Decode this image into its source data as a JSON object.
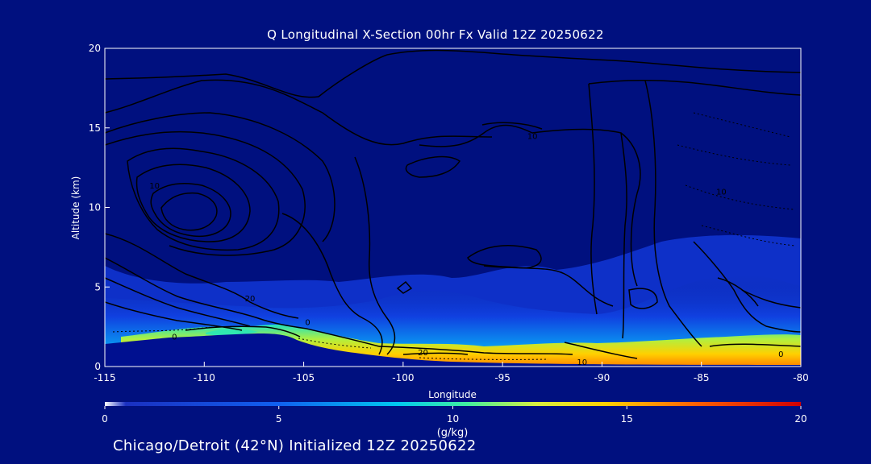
{
  "title": "Q Longitudinal X-Section 00hr  Fx Valid 12Z 20250622",
  "footer": "Chicago/Detroit (42°N) Initialized 12Z 20250622",
  "colors": {
    "background": "#00107f",
    "text": "#ffffff",
    "contour": "#000000"
  },
  "chart_data": {
    "type": "heatmap",
    "title": "Q Longitudinal X-Section 00hr  Fx Valid 12Z 20250622",
    "xlabel": "Longitude",
    "ylabel": "Altitude (km)",
    "xlim": [
      -115,
      -80
    ],
    "ylim": [
      0,
      20
    ],
    "xticks": [
      -115,
      -110,
      -105,
      -100,
      -95,
      -90,
      -85,
      -80
    ],
    "xtick_labels": [
      "-115",
      "-110",
      "-105",
      "-100",
      "-95",
      "-90",
      "-85",
      "-80"
    ],
    "yticks": [
      0,
      5,
      10,
      15,
      20
    ],
    "ytick_labels": [
      "0",
      "5",
      "10",
      "15",
      "20"
    ],
    "colorbar": {
      "label": "(g/kg)",
      "min": 0,
      "max": 20,
      "ticks": [
        0,
        5,
        10,
        15,
        20
      ],
      "tick_labels": [
        "0",
        "5",
        "10",
        "15",
        "20"
      ]
    },
    "terrain_km": [
      {
        "lon": -115,
        "alt": 1.4
      },
      {
        "lon": -112,
        "alt": 1.5
      },
      {
        "lon": -110,
        "alt": 1.9
      },
      {
        "lon": -108,
        "alt": 2.0
      },
      {
        "lon": -106,
        "alt": 1.9
      },
      {
        "lon": -105,
        "alt": 1.8
      },
      {
        "lon": -103,
        "alt": 1.2
      },
      {
        "lon": -101,
        "alt": 0.8
      },
      {
        "lon": -99,
        "alt": 0.5
      },
      {
        "lon": -95,
        "alt": 0.25
      },
      {
        "lon": -80,
        "alt": 0.15
      }
    ],
    "contour_labels": [
      {
        "text": "10",
        "lon": -93.5,
        "alt": 14.3
      },
      {
        "text": "10",
        "lon": -112.5,
        "alt": 11.2
      },
      {
        "text": "10",
        "lon": -84,
        "alt": 10.8
      },
      {
        "text": "20",
        "lon": -107.7,
        "alt": 4.1
      },
      {
        "text": "20",
        "lon": -99,
        "alt": 0.7
      },
      {
        "text": "10",
        "lon": -91,
        "alt": 0.1
      },
      {
        "text": "0",
        "lon": -81,
        "alt": 0.6
      },
      {
        "text": "0",
        "lon": -104.8,
        "alt": 2.6
      },
      {
        "text": "0",
        "lon": -111.5,
        "alt": 1.7
      }
    ]
  }
}
